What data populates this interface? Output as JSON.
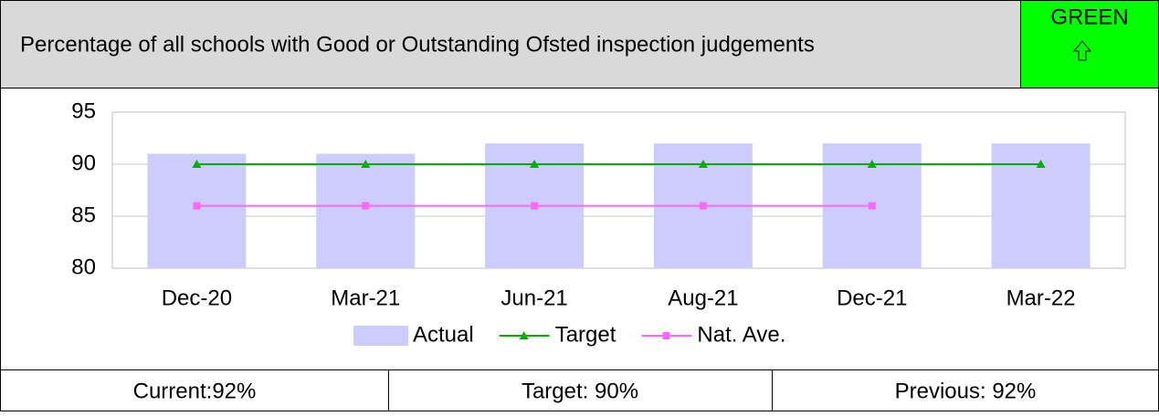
{
  "header": {
    "title": "Percentage of all schools with Good or Outstanding Ofsted inspection judgements",
    "status": "GREEN"
  },
  "chart_data": {
    "type": "bar",
    "categories": [
      "Dec-20",
      "Mar-21",
      "Jun-21",
      "Aug-21",
      "Dec-21",
      "Mar-22"
    ],
    "series": [
      {
        "name": "Actual",
        "type": "bar",
        "color": "#ccccff",
        "values": [
          91,
          91,
          92,
          92,
          92,
          92
        ]
      },
      {
        "name": "Target",
        "type": "line",
        "marker": "triangle",
        "color": "#00b000",
        "values": [
          90,
          90,
          90,
          90,
          90,
          90
        ]
      },
      {
        "name": "Nat. Ave.",
        "type": "line",
        "marker": "square",
        "color": "#ff66ff",
        "values": [
          86,
          86,
          86,
          86,
          86,
          null
        ]
      }
    ],
    "ylim": [
      80,
      95
    ],
    "yticks": [
      80,
      85,
      90,
      95
    ],
    "grid": true,
    "legend": "bottom"
  },
  "footer": [
    "Current:92%",
    "Target: 90%",
    "Previous: 92%"
  ]
}
